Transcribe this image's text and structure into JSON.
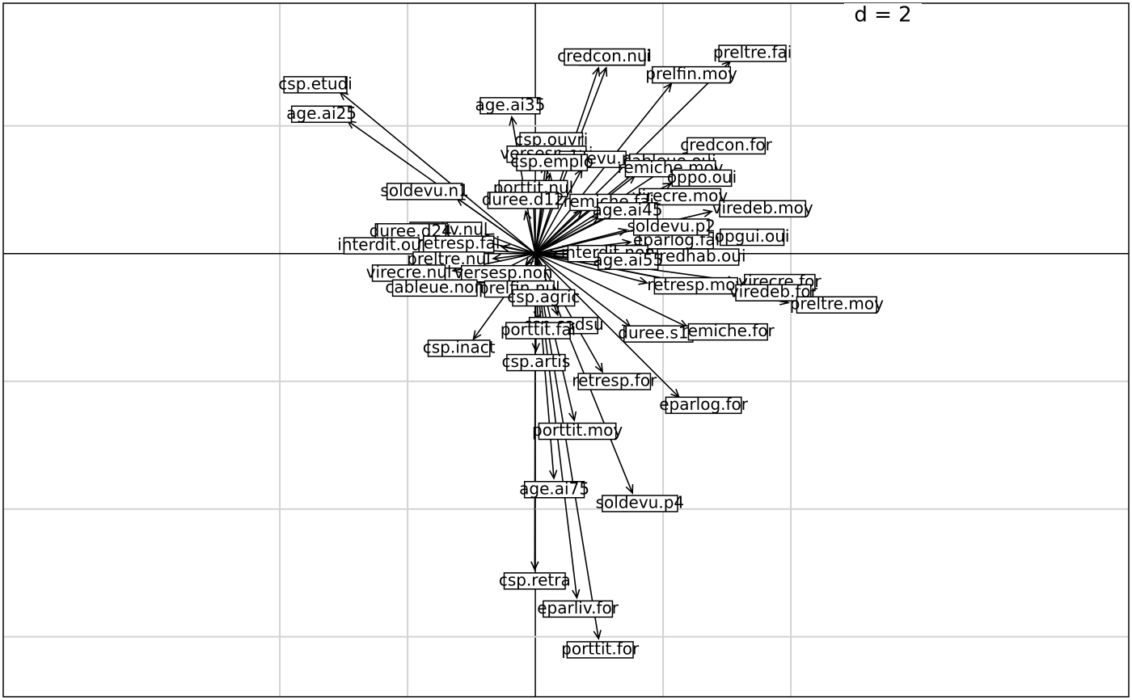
{
  "chart_data": {
    "type": "arrow",
    "grid_label": "d = 2",
    "xlim": [
      -8.33,
      9.29
    ],
    "ylim": [
      -6.94,
      3.92
    ],
    "xticks": [
      -4,
      -2,
      0,
      2,
      4
    ],
    "yticks": [
      -6,
      -4,
      -2,
      0,
      2
    ],
    "grid": true,
    "points": [
      {
        "label": "csp.etudi",
        "x": -3.06,
        "y": 2.53
      },
      {
        "label": "age.ai25",
        "x": -2.94,
        "y": 2.08
      },
      {
        "label": "age.ai35",
        "x": -0.37,
        "y": 2.14
      },
      {
        "label": "prelfin.fai",
        "x": 1.11,
        "y": 2.91
      },
      {
        "label": "credcon.nul",
        "x": 0.99,
        "y": 2.91
      },
      {
        "label": "preltre.fai",
        "x": 3.05,
        "y": 3.01
      },
      {
        "label": "prelfin.moy",
        "x": 2.13,
        "y": 2.66
      },
      {
        "label": "credcon.for",
        "x": 2.44,
        "y": 1.59
      },
      {
        "label": "csp.ouvri",
        "x": 0.23,
        "y": 1.59
      },
      {
        "label": "versesp.oui",
        "x": 0.16,
        "y": 1.38
      },
      {
        "label": "soldevu.n",
        "x": 0.73,
        "y": 1.32
      },
      {
        "label": "cableue.oui",
        "x": 1.62,
        "y": 1.32
      },
      {
        "label": "remiche.moy",
        "x": 1.56,
        "y": 1.22
      },
      {
        "label": "csp.emplo",
        "x": 0.23,
        "y": 1.25
      },
      {
        "label": "oppo.oui",
        "x": 2.13,
        "y": 1.1
      },
      {
        "label": "porttit.nul",
        "x": -0.03,
        "y": 0.84
      },
      {
        "label": "soldevu.n1",
        "x": -1.23,
        "y": 0.87
      },
      {
        "label": "virecre.moy",
        "x": 1.62,
        "y": 0.81
      },
      {
        "label": "duree.d12",
        "x": -0.15,
        "y": 0.66
      },
      {
        "label": "remiche.fai",
        "x": 0.73,
        "y": 0.68
      },
      {
        "label": "age.ai45",
        "x": 0.99,
        "y": 0.58
      },
      {
        "label": "viredeb.moy",
        "x": 2.76,
        "y": 0.66
      },
      {
        "label": "eparlog.fai",
        "x": 1.49,
        "y": 0.18
      },
      {
        "label": "opgui.oui",
        "x": 2.76,
        "y": 0.24
      },
      {
        "label": "soldevu.p2",
        "x": 1.43,
        "y": 0.37
      },
      {
        "label": "eparliv.nul",
        "x": -0.78,
        "y": 0.3
      },
      {
        "label": "duree.d24",
        "x": -1.29,
        "y": 0.3
      },
      {
        "label": "interdit.oui",
        "x": -1.67,
        "y": 0.11
      },
      {
        "label": "retresp.fai",
        "x": -0.53,
        "y": 0.11
      },
      {
        "label": "interdit.non",
        "x": 0.35,
        "y": 0.0
      },
      {
        "label": "credhab.oui",
        "x": 1.75,
        "y": -0.05
      },
      {
        "label": "age.ai55",
        "x": 0.86,
        "y": -0.1
      },
      {
        "label": "preltre.nul",
        "x": -0.66,
        "y": -0.08
      },
      {
        "label": "versesp.non",
        "x": -0.15,
        "y": -0.18
      },
      {
        "label": "retresp.moy",
        "x": 1.75,
        "y": -0.46
      },
      {
        "label": "virecre.for",
        "x": 3.14,
        "y": -0.43
      },
      {
        "label": "viredeb.for",
        "x": 3.01,
        "y": -0.58
      },
      {
        "label": "preltre.moy",
        "x": 3.96,
        "y": -0.77
      },
      {
        "label": "virecre.nul",
        "x": -1.29,
        "y": -0.27
      },
      {
        "label": "cableue.non",
        "x": -0.91,
        "y": -0.46
      },
      {
        "label": "prelfin.nul",
        "x": -0.15,
        "y": -0.39
      },
      {
        "label": "csp.agric",
        "x": 0.1,
        "y": -0.52
      },
      {
        "label": "duree.s12",
        "x": 1.49,
        "y": -1.15
      },
      {
        "label": "remiche.for",
        "x": 2.38,
        "y": -1.15
      },
      {
        "label": "csp.cadsu",
        "x": 0.35,
        "y": -0.96
      },
      {
        "label": "porttit.fai",
        "x": 0.04,
        "y": -1.03
      },
      {
        "label": "csp.inact",
        "x": -0.97,
        "y": -1.34
      },
      {
        "label": "csp.artis",
        "x": 0.01,
        "y": -1.53
      },
      {
        "label": "retresp.for",
        "x": 1.05,
        "y": -1.85
      },
      {
        "label": "eparlog.for",
        "x": 2.25,
        "y": -2.25
      },
      {
        "label": "porttit.moy",
        "x": 0.61,
        "y": -2.61
      },
      {
        "label": "age.ai75",
        "x": 0.29,
        "y": -3.52
      },
      {
        "label": "soldevu.p4",
        "x": 1.52,
        "y": -3.75
      },
      {
        "label": "csp.retra",
        "x": -0.01,
        "y": -4.95
      },
      {
        "label": "eparliv.for",
        "x": 0.65,
        "y": -5.39
      },
      {
        "label": "porttit.for",
        "x": 0.99,
        "y": -6.03
      }
    ]
  }
}
